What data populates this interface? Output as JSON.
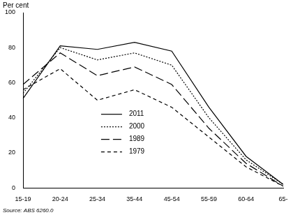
{
  "chart_data": {
    "type": "line",
    "y_label": "Per cent",
    "annotations": [
      "Source: ABS 6260.0"
    ],
    "categories": [
      "15-19",
      "20-24",
      "25-34",
      "35-44",
      "45-54",
      "55-59",
      "60-64",
      "65-"
    ],
    "series": [
      {
        "name": "2011",
        "color": "#000000",
        "line_style": "solid",
        "values": [
          51,
          81,
          79,
          83,
          78,
          46,
          18,
          2
        ]
      },
      {
        "name": "2000",
        "color": "#000000",
        "line_style": "dotted",
        "values": [
          54,
          80,
          73,
          77,
          70,
          40,
          16,
          2
        ]
      },
      {
        "name": "1989",
        "color": "#000000",
        "line_style": "dashed",
        "values": [
          59,
          77,
          64,
          69,
          59,
          34,
          14,
          1
        ]
      },
      {
        "name": "1979",
        "color": "#000000",
        "line_style": "short_dashed",
        "values": [
          56,
          68,
          50,
          56,
          46,
          29,
          12,
          1
        ]
      }
    ],
    "ylim": [
      0,
      100
    ],
    "yticks": [
      0,
      20,
      40,
      60,
      80,
      100
    ],
    "grid": false,
    "legend": "center"
  }
}
